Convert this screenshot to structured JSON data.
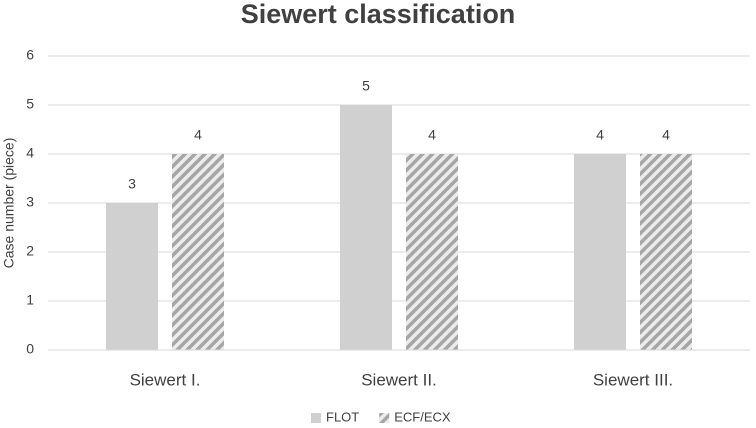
{
  "chart_data": {
    "type": "bar",
    "title": "Siewert classification",
    "y_label": "Case number (piece)",
    "categories": [
      "Siewert I.",
      "Siewert II.",
      "Siewert III."
    ],
    "series": [
      {
        "name": "FLOT",
        "color": "#d0d0d0",
        "fill_style": "solid",
        "values": [
          3,
          5,
          4
        ]
      },
      {
        "name": "ECF/ECX",
        "color": "#a6a6a6",
        "fill_style": "hatch",
        "values": [
          4,
          4,
          4
        ]
      }
    ],
    "ylim": [
      0,
      6
    ],
    "yticks": [
      0,
      1,
      2,
      3,
      4,
      5,
      6
    ],
    "grid": true,
    "legend": "bottom",
    "data_labels": true
  }
}
